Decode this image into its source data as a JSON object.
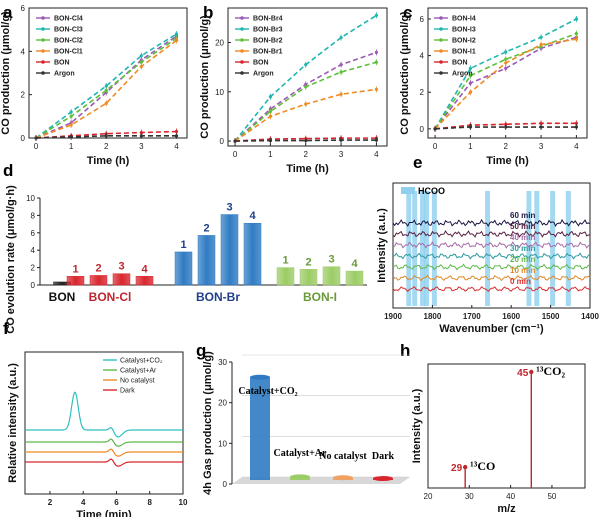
{
  "panel_labels": [
    "a",
    "b",
    "c",
    "d",
    "e",
    "f",
    "g",
    "h"
  ],
  "chart_data": [
    {
      "id": "a",
      "type": "line",
      "xlabel": "Time (h)",
      "ylabel": "CO production (μmol/g)",
      "x": [
        0,
        1,
        2,
        3,
        4
      ],
      "xlim": [
        -0.2,
        4.3
      ],
      "ylim": [
        0,
        6
      ],
      "yticks": [
        0,
        2,
        4,
        6
      ],
      "xticks": [
        0,
        1,
        2,
        3,
        4
      ],
      "series": [
        {
          "name": "BON-Cl4",
          "color": "#9b59b6",
          "values": [
            0,
            0.7,
            2.1,
            3.6,
            4.7
          ]
        },
        {
          "name": "BON-Cl3",
          "color": "#1fb6b0",
          "values": [
            0,
            1.2,
            2.4,
            3.8,
            4.8
          ]
        },
        {
          "name": "BON-Cl2",
          "color": "#5fbf3a",
          "values": [
            0,
            1.0,
            2.2,
            3.5,
            4.6
          ]
        },
        {
          "name": "BON-Cl1",
          "color": "#f08a24",
          "values": [
            0,
            0.6,
            1.6,
            3.3,
            4.5
          ]
        },
        {
          "name": "BON",
          "color": "#d9262e",
          "values": [
            0,
            0.1,
            0.2,
            0.25,
            0.3
          ]
        },
        {
          "name": "Argon",
          "color": "#333333",
          "values": [
            0,
            0.05,
            0.1,
            0.1,
            0.1
          ]
        }
      ]
    },
    {
      "id": "b",
      "type": "line",
      "xlabel": "Time (h)",
      "ylabel": "CO production (μmol/g)",
      "x": [
        0,
        1,
        2,
        3,
        4
      ],
      "xlim": [
        -0.2,
        4.3
      ],
      "ylim": [
        -1,
        27
      ],
      "yticks": [
        0,
        10,
        20
      ],
      "xticks": [
        0,
        1,
        2,
        3,
        4
      ],
      "series": [
        {
          "name": "BON-Br4",
          "color": "#9b59b6",
          "values": [
            0,
            6.5,
            11.5,
            15.5,
            18
          ]
        },
        {
          "name": "BON-Br3",
          "color": "#1fb6b0",
          "values": [
            0,
            9,
            15.5,
            21,
            25.5
          ]
        },
        {
          "name": "BON-Br2",
          "color": "#5fbf3a",
          "values": [
            0,
            6,
            11,
            14,
            16
          ]
        },
        {
          "name": "BON-Br1",
          "color": "#f08a24",
          "values": [
            0,
            5,
            7.5,
            9.5,
            10.5
          ]
        },
        {
          "name": "BON",
          "color": "#d9262e",
          "values": [
            0,
            0.4,
            0.5,
            0.6,
            0.6
          ]
        },
        {
          "name": "Argon",
          "color": "#333333",
          "values": [
            0,
            0.1,
            0.1,
            0.2,
            0.2
          ]
        }
      ]
    },
    {
      "id": "c",
      "type": "line",
      "xlabel": "Time (h)",
      "ylabel": "CO production (μmol/g)",
      "x": [
        0,
        1,
        2,
        3,
        4
      ],
      "xlim": [
        -0.2,
        4.3
      ],
      "ylim": [
        -0.5,
        6.6
      ],
      "yticks": [
        0,
        2,
        4,
        6
      ],
      "xticks": [
        0,
        1,
        2,
        3,
        4
      ],
      "series": [
        {
          "name": "BON-I4",
          "color": "#9b59b6",
          "values": [
            0,
            2.5,
            3.3,
            4.4,
            5.0
          ]
        },
        {
          "name": "BON-I3",
          "color": "#1fb6b0",
          "values": [
            0,
            3.3,
            4.2,
            5.0,
            6.0
          ]
        },
        {
          "name": "BON-I2",
          "color": "#5fbf3a",
          "values": [
            0,
            2.9,
            3.8,
            4.5,
            5.2
          ]
        },
        {
          "name": "BON-I1",
          "color": "#f08a24",
          "values": [
            0,
            2.0,
            3.6,
            4.6,
            4.9
          ]
        },
        {
          "name": "BON",
          "color": "#d9262e",
          "values": [
            0,
            0.2,
            0.25,
            0.3,
            0.3
          ]
        },
        {
          "name": "Argon",
          "color": "#333333",
          "values": [
            0,
            0.1,
            0.1,
            0.1,
            0.1
          ]
        }
      ]
    },
    {
      "id": "d",
      "type": "bar",
      "ylabel": "CO evolution rate (μmol/g·h)",
      "ylim": [
        0,
        10
      ],
      "yticks": [
        0,
        2,
        4,
        6,
        8,
        10
      ],
      "groups": [
        {
          "name": "BON",
          "color": "#222222",
          "label_color": "#111111",
          "bars": [
            {
              "label": "",
              "value": 0.35
            }
          ]
        },
        {
          "name": "BON-Cl",
          "color": "#d9262e",
          "label_color": "#c0262e",
          "bars": [
            {
              "label": "1",
              "value": 1.0
            },
            {
              "label": "2",
              "value": 1.1
            },
            {
              "label": "3",
              "value": 1.3
            },
            {
              "label": "4",
              "value": 1.0
            }
          ]
        },
        {
          "name": "BON-Br",
          "color": "#2f7bc3",
          "label_color": "#1f3f8a",
          "bars": [
            {
              "label": "1",
              "value": 3.8
            },
            {
              "label": "2",
              "value": 5.7
            },
            {
              "label": "3",
              "value": 8.1
            },
            {
              "label": "4",
              "value": 7.1
            }
          ]
        },
        {
          "name": "BON-I",
          "color": "#9ccc65",
          "label_color": "#6a9a3a",
          "bars": [
            {
              "label": "1",
              "value": 2.0
            },
            {
              "label": "2",
              "value": 1.8
            },
            {
              "label": "3",
              "value": 2.1
            },
            {
              "label": "4",
              "value": 1.6
            }
          ]
        }
      ]
    },
    {
      "id": "e",
      "type": "line",
      "xlabel": "Wavenumber (cm⁻¹)",
      "ylabel": "Intensity (a.u.)",
      "xlim": [
        1900,
        1400
      ],
      "xticks": [
        1900,
        1800,
        1700,
        1600,
        1500,
        1400
      ],
      "legend": "HCOO",
      "hcoo_bands": [
        1860,
        1845,
        1825,
        1815,
        1795,
        1660,
        1555,
        1535,
        1495,
        1455
      ],
      "series": [
        {
          "name": "60 min",
          "color": "#1b1540"
        },
        {
          "name": "50 min",
          "color": "#5a2040"
        },
        {
          "name": "40 min",
          "color": "#a76ca7"
        },
        {
          "name": "30 min",
          "color": "#2f9aa0"
        },
        {
          "name": "20 min",
          "color": "#5fb84a"
        },
        {
          "name": "10 min",
          "color": "#e08a2a"
        },
        {
          "name": "0 min",
          "color": "#d63030"
        }
      ]
    },
    {
      "id": "f",
      "type": "line",
      "xlabel": "Time (min)",
      "ylabel": "Relative intensity (a.u.)",
      "xlim": [
        0.5,
        10
      ],
      "xticks": [
        2,
        4,
        6,
        8,
        10
      ],
      "series": [
        {
          "name": "Catalyst+CO₂",
          "color": "#2fc0c0"
        },
        {
          "name": "Catalyst+Ar",
          "color": "#5fb84a"
        },
        {
          "name": "No catalyst",
          "color": "#f08a24"
        },
        {
          "name": "Dark",
          "color": "#d9262e"
        }
      ]
    },
    {
      "id": "g",
      "type": "bar",
      "ylabel": "4h Gas production (μmol/g)",
      "ylim": [
        0,
        30
      ],
      "yticks": [
        0,
        10,
        20,
        30
      ],
      "categories": [
        "Catalyst+CO₂",
        "Catalyst+Ar",
        "No catalyst",
        "Dark"
      ],
      "values": [
        25.5,
        1.0,
        0.8,
        0.6
      ],
      "colors": [
        "#2f7bc3",
        "#9ccc65",
        "#f0a060",
        "#d9262e"
      ]
    },
    {
      "id": "h",
      "type": "bar",
      "xlabel": "m/z",
      "ylabel": "Intensity (a.u.)",
      "xlim": [
        20,
        58
      ],
      "xticks": [
        20,
        30,
        40,
        50
      ],
      "peaks": [
        {
          "mz": 29,
          "intensity": 0.18,
          "label": "29",
          "species": "¹³CO"
        },
        {
          "mz": 45,
          "intensity": 1.0,
          "label": "45",
          "species": "¹³CO₂"
        }
      ]
    }
  ]
}
